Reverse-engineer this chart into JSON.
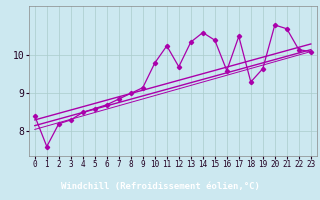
{
  "title": "",
  "xlabel": "Windchill (Refroidissement éolien,°C)",
  "ylabel": "",
  "bg_color": "#cce8f0",
  "grid_color": "#aacccc",
  "line_color": "#aa00aa",
  "xlabel_bg": "#660066",
  "xlabel_fg": "#ffffff",
  "xlim": [
    -0.5,
    23.5
  ],
  "ylim": [
    7.35,
    11.3
  ],
  "xticks": [
    0,
    1,
    2,
    3,
    4,
    5,
    6,
    7,
    8,
    9,
    10,
    11,
    12,
    13,
    14,
    15,
    16,
    17,
    18,
    19,
    20,
    21,
    22,
    23
  ],
  "yticks": [
    8,
    9,
    10
  ],
  "main_data_x": [
    0,
    1,
    2,
    3,
    4,
    5,
    6,
    7,
    8,
    9,
    10,
    11,
    12,
    13,
    14,
    15,
    16,
    17,
    18,
    19,
    20,
    21,
    22,
    23
  ],
  "main_data_y": [
    8.4,
    7.6,
    8.2,
    8.3,
    8.5,
    8.6,
    8.7,
    8.85,
    9.0,
    9.15,
    9.8,
    10.25,
    9.7,
    10.35,
    10.6,
    10.4,
    9.6,
    10.5,
    9.3,
    9.65,
    10.8,
    10.7,
    10.15,
    10.1
  ],
  "reg_line1_x": [
    0,
    23
  ],
  "reg_line1_y": [
    8.15,
    10.15
  ],
  "reg_line2_x": [
    0,
    23
  ],
  "reg_line2_y": [
    8.3,
    10.3
  ],
  "reg_line3_x": [
    0,
    23
  ],
  "reg_line3_y": [
    8.05,
    10.1
  ],
  "label_fontsize": 6.5,
  "tick_fontsize": 5.5
}
